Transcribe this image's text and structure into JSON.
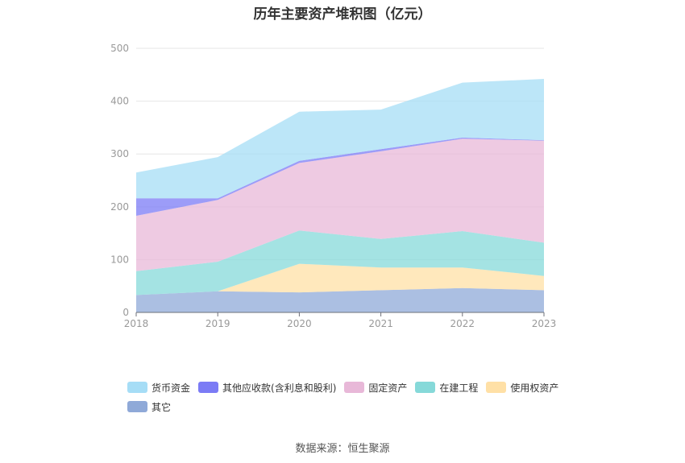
{
  "chart_data": {
    "type": "area",
    "stacked": true,
    "title": "历年主要资产堆积图（亿元）",
    "x": [
      "2018",
      "2019",
      "2020",
      "2021",
      "2022",
      "2023"
    ],
    "y_ticks": [
      "0",
      "100",
      "200",
      "300",
      "400",
      "500"
    ],
    "ylim": [
      0,
      500
    ],
    "grid": true,
    "legend_position": "bottom",
    "series": [
      {
        "name": "其它",
        "color": "#8fa9d8",
        "values": [
          33,
          40,
          38,
          42,
          46,
          42
        ]
      },
      {
        "name": "使用权资产",
        "color": "#ffe0a6",
        "values": [
          0,
          0,
          54,
          43,
          39,
          27
        ]
      },
      {
        "name": "在建工程",
        "color": "#86d9d9",
        "values": [
          45,
          56,
          63,
          54,
          69,
          63
        ]
      },
      {
        "name": "固定资产",
        "color": "#e8b8d8",
        "values": [
          105,
          117,
          128,
          166,
          175,
          193
        ]
      },
      {
        "name": "其他应收款(含利息和股利)",
        "color": "#7b7bf5",
        "values": [
          33,
          3,
          4,
          4,
          2,
          1
        ]
      },
      {
        "name": "货币资金",
        "color": "#a6ddf6",
        "values": [
          49,
          78,
          93,
          75,
          104,
          116
        ]
      }
    ]
  },
  "legend_order": [
    5,
    4,
    3,
    2,
    1,
    0
  ],
  "source": "数据来源：恒生聚源"
}
